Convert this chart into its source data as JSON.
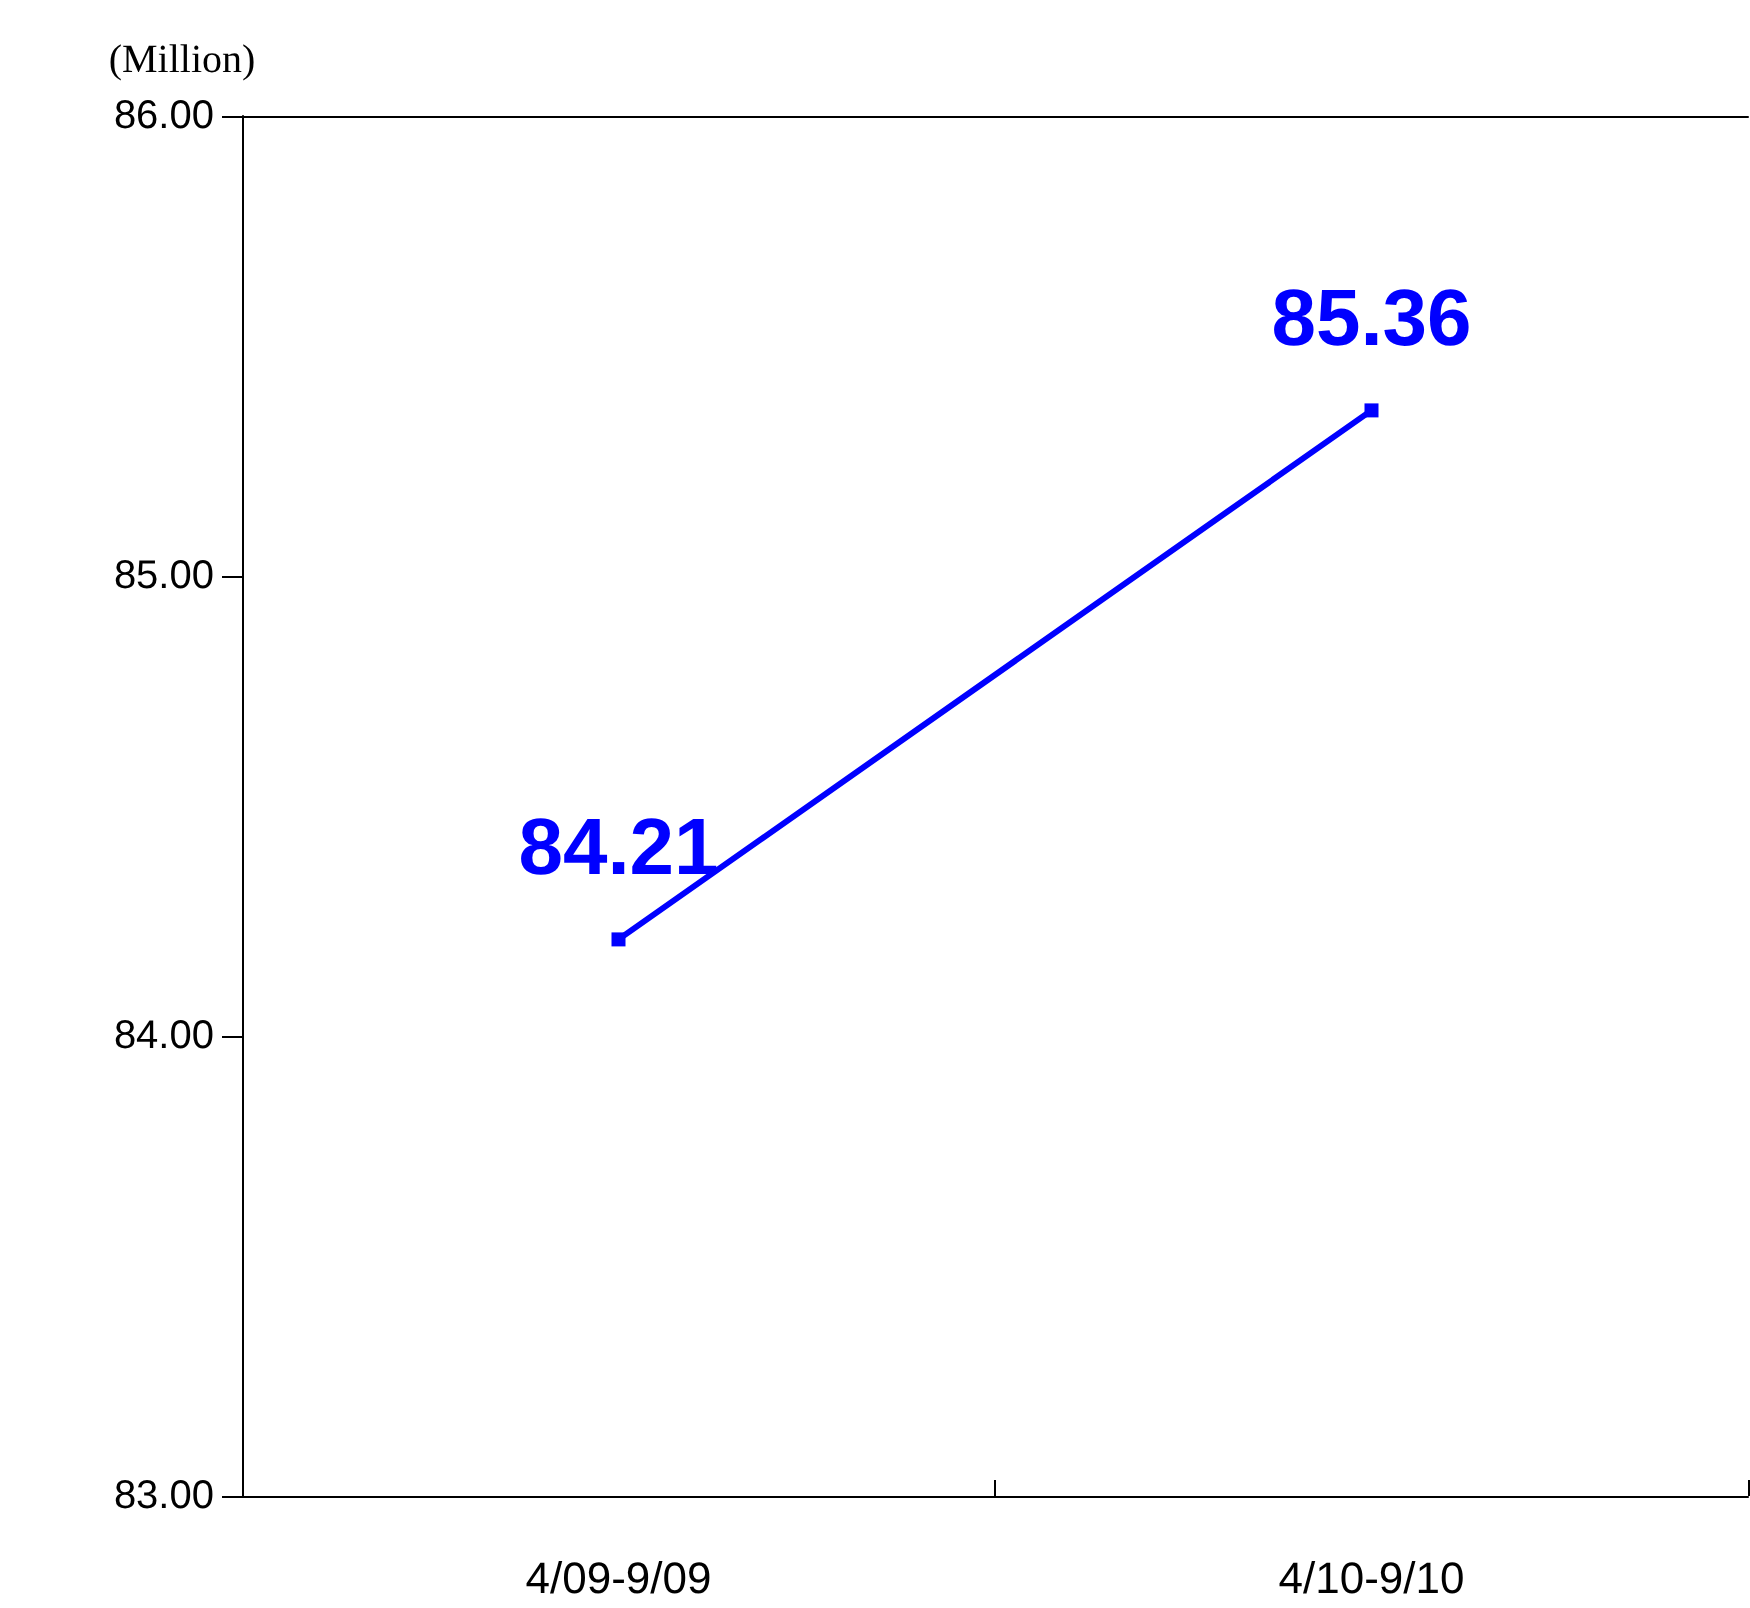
{
  "chart_data": {
    "type": "line",
    "ylabel": "(Million)",
    "categories": [
      "4/09-9/09",
      "4/10-9/10"
    ],
    "series": [
      {
        "color": "#0000ff",
        "values": [
          84.21,
          85.36
        ]
      }
    ],
    "ylim": [
      83,
      86
    ],
    "yticks": [
      {
        "value": 83,
        "label": "83.00"
      },
      {
        "value": 84,
        "label": "84.00"
      },
      {
        "value": 85,
        "label": "85.00"
      },
      {
        "value": 86,
        "label": "86.00"
      }
    ],
    "data_labels": true,
    "marker": "square",
    "line_style": "solid"
  }
}
